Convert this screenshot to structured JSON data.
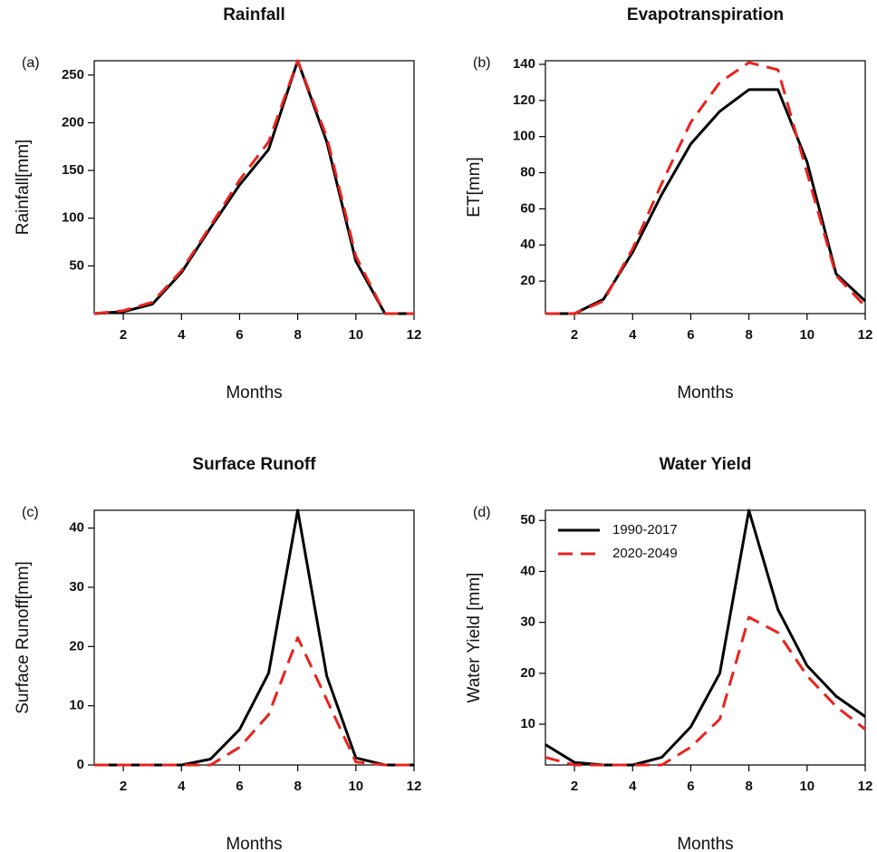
{
  "figure": {
    "x_label": "Months",
    "legend": {
      "entries": [
        {
          "label": "1990-2017",
          "color": "#000000",
          "dash": "solid"
        },
        {
          "label": "2020-2049",
          "color": "#e8231f",
          "dash": "dashed"
        }
      ]
    }
  },
  "chart_data": [
    {
      "panel": "(a)",
      "type": "line",
      "title": "Rainfall",
      "xlabel": "Months",
      "ylabel": "Rainfall[mm]",
      "xlim": [
        1,
        12
      ],
      "ylim": [
        0,
        265
      ],
      "xticks": [
        2,
        4,
        6,
        8,
        10,
        12
      ],
      "yticks": [
        50,
        100,
        150,
        200,
        250
      ],
      "grid": false,
      "x": [
        1,
        2,
        3,
        4,
        5,
        6,
        7,
        8,
        9,
        10,
        11,
        12
      ],
      "series": [
        {
          "name": "1990-2017",
          "values": [
            0,
            2,
            10,
            43,
            90,
            135,
            172,
            265,
            180,
            55,
            0,
            0
          ]
        },
        {
          "name": "2020-2049",
          "values": [
            0,
            3,
            12,
            45,
            92,
            140,
            180,
            265,
            185,
            60,
            0,
            0
          ]
        }
      ]
    },
    {
      "panel": "(b)",
      "type": "line",
      "title": "Evapotranspiration",
      "xlabel": "Months",
      "ylabel": "ET[mm]",
      "xlim": [
        1,
        12
      ],
      "ylim": [
        2,
        142
      ],
      "xticks": [
        2,
        4,
        6,
        8,
        10,
        12
      ],
      "yticks": [
        20,
        40,
        60,
        80,
        100,
        120,
        140
      ],
      "grid": false,
      "x": [
        1,
        2,
        3,
        4,
        5,
        6,
        7,
        8,
        9,
        10,
        11,
        12
      ],
      "series": [
        {
          "name": "1990-2017",
          "values": [
            2,
            2,
            10,
            36,
            68,
            96,
            114,
            126,
            126,
            86,
            24,
            9
          ]
        },
        {
          "name": "2020-2049",
          "values": [
            2,
            2,
            9,
            38,
            74,
            108,
            130,
            141,
            137,
            80,
            23,
            6
          ]
        }
      ]
    },
    {
      "panel": "(c)",
      "type": "line",
      "title": "Surface Runoff",
      "xlabel": "Months",
      "ylabel": "Surface Runoff[mm]",
      "xlim": [
        1,
        12
      ],
      "ylim": [
        0,
        43
      ],
      "xticks": [
        2,
        4,
        6,
        8,
        10,
        12
      ],
      "yticks": [
        0,
        10,
        20,
        30,
        40
      ],
      "grid": false,
      "x": [
        1,
        2,
        3,
        4,
        5,
        6,
        7,
        8,
        9,
        10,
        11,
        12
      ],
      "series": [
        {
          "name": "1990-2017",
          "values": [
            0,
            0,
            0,
            0,
            1,
            6,
            15.5,
            43,
            15,
            1.2,
            0,
            0
          ]
        },
        {
          "name": "2020-2049",
          "values": [
            0,
            0,
            0,
            0,
            0,
            3,
            8.5,
            21.5,
            11,
            0.5,
            0,
            0
          ]
        }
      ]
    },
    {
      "panel": "(d)",
      "type": "line",
      "title": "Water Yield",
      "xlabel": "Months",
      "ylabel": "Water Yield [mm]",
      "xlim": [
        1,
        12
      ],
      "ylim": [
        2,
        52
      ],
      "xticks": [
        2,
        4,
        6,
        8,
        10,
        12
      ],
      "yticks": [
        10,
        20,
        30,
        40,
        50
      ],
      "grid": false,
      "legend_position": "top-left",
      "x": [
        1,
        2,
        3,
        4,
        5,
        6,
        7,
        8,
        9,
        10,
        11,
        12
      ],
      "series": [
        {
          "name": "1990-2017",
          "values": [
            6,
            2.5,
            2,
            2,
            3.5,
            9.5,
            20,
            52,
            32.5,
            21.5,
            15.5,
            11.5
          ]
        },
        {
          "name": "2020-2049",
          "values": [
            3.5,
            2,
            2,
            2,
            2,
            5.5,
            11,
            31,
            28,
            19.5,
            13.5,
            9
          ]
        }
      ]
    }
  ]
}
